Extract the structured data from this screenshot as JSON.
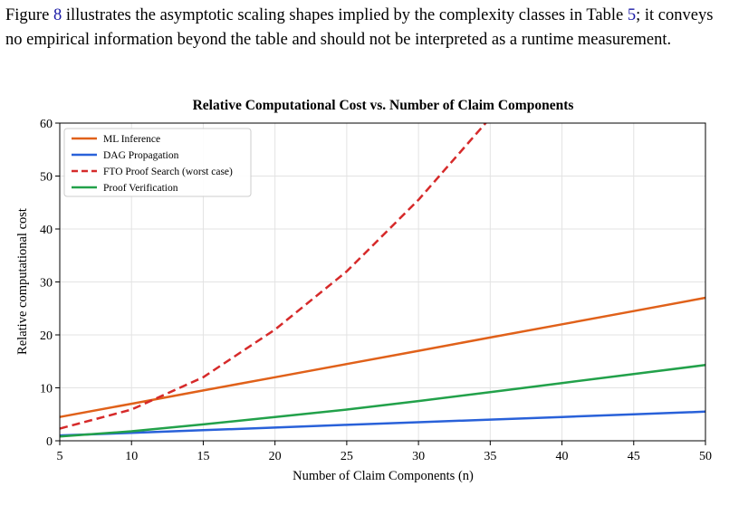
{
  "paragraph": {
    "part1": "Figure ",
    "ref_figure": "8",
    "part2": " illustrates the asymptotic scaling shapes implied by the complexity classes in Table ",
    "ref_table": "5",
    "part3": "; it conveys no empirical information beyond the table and should not be interpreted as a runtime measurement."
  },
  "link_color": "#1a1aa6",
  "chart_data": {
    "type": "line",
    "title": "Relative Computational Cost vs. Number of Claim Components",
    "xlabel": "Number of Claim Components (n)",
    "ylabel": "Relative computational cost",
    "xlim": [
      5,
      50
    ],
    "ylim": [
      0,
      60
    ],
    "xticks": [
      5,
      10,
      15,
      20,
      25,
      30,
      35,
      40,
      45,
      50
    ],
    "yticks": [
      0,
      10,
      20,
      30,
      40,
      50,
      60
    ],
    "grid": true,
    "legend": "top-left",
    "series": [
      {
        "name": "ML Inference",
        "color": "#e0611a",
        "dash": false,
        "x": [
          5,
          10,
          15,
          20,
          25,
          30,
          35,
          40,
          45,
          50
        ],
        "y": [
          4.5,
          7.0,
          9.5,
          12.0,
          14.5,
          17.0,
          19.5,
          22.0,
          24.5,
          27.0
        ]
      },
      {
        "name": "DAG Propagation",
        "color": "#2961d9",
        "dash": false,
        "x": [
          5,
          10,
          15,
          20,
          25,
          30,
          35,
          40,
          45,
          50
        ],
        "y": [
          1.0,
          1.5,
          2.0,
          2.5,
          3.0,
          3.5,
          4.0,
          4.5,
          5.0,
          5.5
        ]
      },
      {
        "name": "FTO Proof Search (worst case)",
        "color": "#d62a2a",
        "dash": true,
        "x": [
          5,
          10,
          15,
          20,
          25,
          30,
          35
        ],
        "y": [
          2.3,
          5.9,
          12.0,
          21.0,
          32.0,
          45.5,
          61.0
        ]
      },
      {
        "name": "Proof Verification",
        "color": "#22a14a",
        "dash": false,
        "x": [
          5,
          10,
          15,
          20,
          25,
          30,
          35,
          40,
          45,
          50
        ],
        "y": [
          0.8,
          1.8,
          3.1,
          4.5,
          5.9,
          7.5,
          9.2,
          10.9,
          12.6,
          14.3
        ]
      }
    ]
  }
}
